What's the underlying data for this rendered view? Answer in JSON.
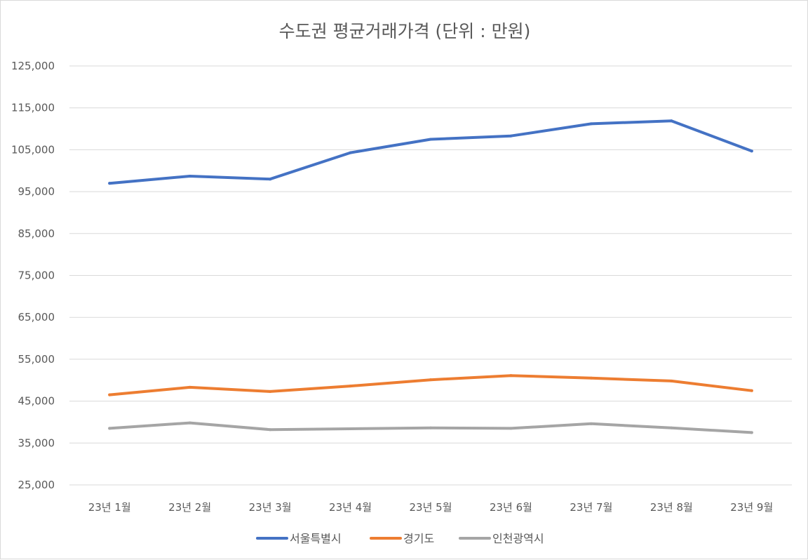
{
  "chart_data": {
    "type": "line",
    "title": "수도권 평균거래가격 (단위 : 만원)",
    "categories": [
      "23년 1월",
      "23년 2월",
      "23년 3월",
      "23년 4월",
      "23년 5월",
      "23년 6월",
      "23년 7월",
      "23년 8월",
      "23년 9월"
    ],
    "ylim": [
      25000,
      125000
    ],
    "yticks": [
      25000,
      35000,
      45000,
      55000,
      65000,
      75000,
      85000,
      95000,
      105000,
      115000,
      125000
    ],
    "ytick_labels": [
      "25,000",
      "35,000",
      "45,000",
      "55,000",
      "65,000",
      "75,000",
      "85,000",
      "95,000",
      "105,000",
      "115,000",
      "125,000"
    ],
    "grid": true,
    "legend_position": "bottom",
    "series": [
      {
        "name": "서울특별시",
        "color": "#4472C4",
        "values": [
          97000,
          98700,
          98000,
          104300,
          107500,
          108300,
          111200,
          111900,
          104700
        ]
      },
      {
        "name": "경기도",
        "color": "#ED7D31",
        "values": [
          46500,
          48300,
          47300,
          48600,
          50100,
          51100,
          50500,
          49800,
          47500
        ]
      },
      {
        "name": "인천광역시",
        "color": "#A5A5A5",
        "values": [
          38500,
          39800,
          38200,
          38400,
          38600,
          38500,
          39600,
          38600,
          37500
        ]
      }
    ]
  }
}
